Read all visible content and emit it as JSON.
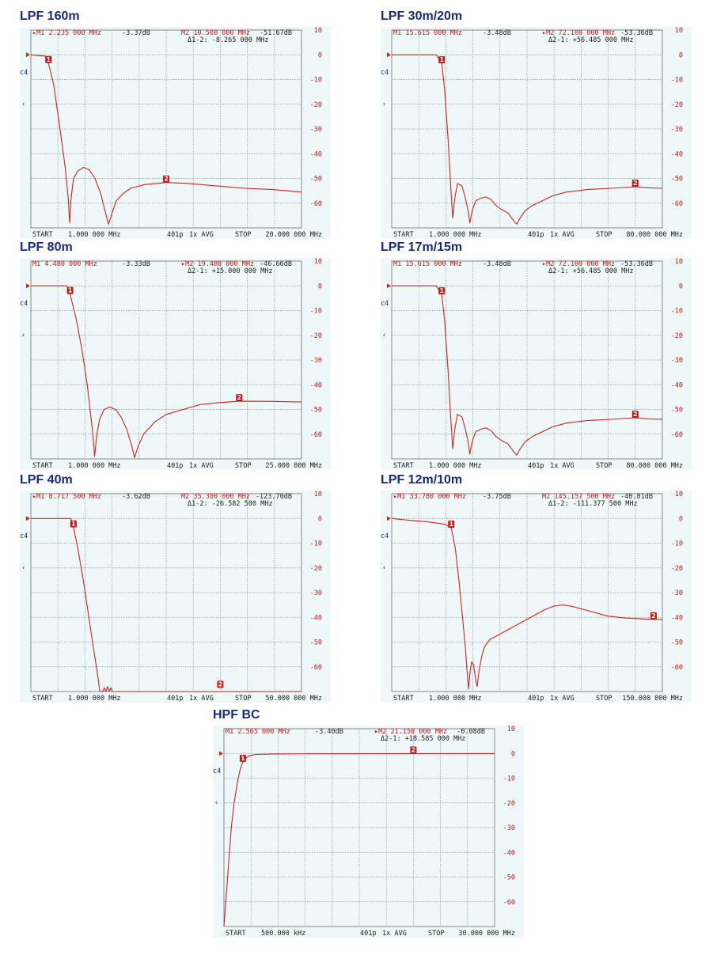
{
  "colors": {
    "title": "#1a2a7a",
    "trace": "#d42020",
    "text_red": "#c41818",
    "screen_bg": "#eef8f8",
    "grid": "#8e8e8e"
  },
  "chart_data": [
    {
      "type": "line",
      "title": "LPF 160m",
      "m1": {
        "label": "▸M1 2.235 000 MHz",
        "value": "-3.37dB"
      },
      "m2": {
        "label": "M2 10.500 000 MHz",
        "value": "-51.67dB"
      },
      "delta": "Δ1-2: -8.265 000 MHz",
      "yticks": [
        "10",
        "0",
        "-10",
        "-20",
        "-30",
        "-40",
        "-50",
        "-60"
      ],
      "ylim": [
        -70,
        10
      ],
      "channel": "c4",
      "channel_sym": "‹",
      "bottom": {
        "start": "START",
        "start_val": "1.000 000 MHz",
        "points": "401p",
        "avg": "1x AVG",
        "stop": "STOP",
        "stop_val": "20.000 000 MHz"
      },
      "xlim": [
        1.0,
        20.0
      ],
      "marker1": {
        "x": 2.235,
        "y": -3.37
      },
      "marker2": {
        "x": 10.5,
        "y": -51.67
      },
      "points": [
        [
          1.0,
          0
        ],
        [
          2.0,
          -0.5
        ],
        [
          2.235,
          -3.37
        ],
        [
          2.6,
          -12
        ],
        [
          3.0,
          -28
        ],
        [
          3.4,
          -45
        ],
        [
          3.62,
          -58
        ],
        [
          3.72,
          -68
        ],
        [
          3.82,
          -58
        ],
        [
          4.0,
          -50
        ],
        [
          4.3,
          -47
        ],
        [
          4.7,
          -45.5
        ],
        [
          5.1,
          -46.5
        ],
        [
          5.5,
          -50
        ],
        [
          5.9,
          -56
        ],
        [
          6.2,
          -63
        ],
        [
          6.45,
          -68.5
        ],
        [
          6.7,
          -64
        ],
        [
          7.0,
          -59
        ],
        [
          7.5,
          -56
        ],
        [
          8.0,
          -54
        ],
        [
          9.0,
          -52.5
        ],
        [
          10.5,
          -51.67
        ],
        [
          12.0,
          -52
        ],
        [
          14.0,
          -53
        ],
        [
          16.0,
          -54
        ],
        [
          18.0,
          -54.5
        ],
        [
          20.0,
          -55.5
        ]
      ]
    },
    {
      "type": "line",
      "title": "LPF 30m/20m",
      "m1": {
        "label": "M1 15.615 000 MHz",
        "value": "-3.48dB"
      },
      "m2": {
        "label": "▸M2 72.100 000 MHz",
        "value": "-53.36dB"
      },
      "delta": "Δ2-1: +56.485 000 MHz",
      "yticks": [
        "10",
        "0",
        "-10",
        "-20",
        "-30",
        "-40",
        "-50",
        "-60"
      ],
      "ylim": [
        -70,
        10
      ],
      "channel": "c4",
      "channel_sym": "‹",
      "bottom": {
        "start": "START",
        "start_val": "1.000 000 MHz",
        "points": "401p",
        "avg": "1x AVG",
        "stop": "STOP",
        "stop_val": "80.000 000 MHz"
      },
      "xlim": [
        1.0,
        80.0
      ],
      "marker1": {
        "x": 15.615,
        "y": -3.48
      },
      "marker2": {
        "x": 72.1,
        "y": -53.36
      },
      "points": [
        [
          1.0,
          0
        ],
        [
          14.0,
          0
        ],
        [
          15.615,
          -3.48
        ],
        [
          16.5,
          -15
        ],
        [
          17.5,
          -35
        ],
        [
          18.3,
          -55
        ],
        [
          18.8,
          -66
        ],
        [
          19.4,
          -58
        ],
        [
          20.2,
          -52
        ],
        [
          21.5,
          -53
        ],
        [
          22.5,
          -58
        ],
        [
          23.3,
          -63
        ],
        [
          23.8,
          -68
        ],
        [
          24.5,
          -63
        ],
        [
          25.5,
          -59
        ],
        [
          27.0,
          -58
        ],
        [
          28.5,
          -57.5
        ],
        [
          30.0,
          -58.5
        ],
        [
          31.5,
          -61
        ],
        [
          33.0,
          -62.5
        ],
        [
          35.0,
          -64
        ],
        [
          36.5,
          -67
        ],
        [
          37.5,
          -68.5
        ],
        [
          38.5,
          -66
        ],
        [
          40.0,
          -63
        ],
        [
          42.0,
          -61
        ],
        [
          45.0,
          -59
        ],
        [
          48.0,
          -57
        ],
        [
          52.0,
          -55.5
        ],
        [
          58.0,
          -54.5
        ],
        [
          65.0,
          -54
        ],
        [
          72.1,
          -53.36
        ],
        [
          76.0,
          -53.8
        ],
        [
          80.0,
          -54
        ]
      ]
    },
    {
      "type": "line",
      "title": "LPF 80m",
      "m1": {
        "label": "M1 4.480 000 MHz",
        "value": "-3.33dB"
      },
      "m2": {
        "label": "▸M2 19.480 000 MHz",
        "value": "-46.66dB"
      },
      "delta": "Δ2-1: +15.000 000 MHz",
      "yticks": [
        "10",
        "0",
        "-10",
        "-20",
        "-30",
        "-40",
        "-50",
        "-60"
      ],
      "ylim": [
        -70,
        10
      ],
      "channel": "c4",
      "channel_sym": "‹",
      "bottom": {
        "start": "START",
        "start_val": "1.000 000 MHz",
        "points": "401p",
        "avg": "1x AVG",
        "stop": "STOP",
        "stop_val": "25.000 000 MHz"
      },
      "xlim": [
        1.0,
        25.0
      ],
      "marker1": {
        "x": 4.48,
        "y": -3.33
      },
      "marker2": {
        "x": 19.48,
        "y": -46.66
      },
      "points": [
        [
          1.0,
          0
        ],
        [
          4.2,
          0
        ],
        [
          4.48,
          -3.33
        ],
        [
          5.0,
          -13
        ],
        [
          5.5,
          -25
        ],
        [
          6.0,
          -40
        ],
        [
          6.3,
          -52
        ],
        [
          6.5,
          -60
        ],
        [
          6.65,
          -69
        ],
        [
          6.85,
          -60
        ],
        [
          7.1,
          -54
        ],
        [
          7.5,
          -50
        ],
        [
          8.0,
          -49
        ],
        [
          8.5,
          -50
        ],
        [
          9.0,
          -53
        ],
        [
          9.5,
          -58
        ],
        [
          9.9,
          -64
        ],
        [
          10.2,
          -69.5
        ],
        [
          10.5,
          -65
        ],
        [
          11.0,
          -60
        ],
        [
          12.0,
          -55
        ],
        [
          13.0,
          -52
        ],
        [
          14.5,
          -50
        ],
        [
          16.0,
          -48
        ],
        [
          17.5,
          -47.3
        ],
        [
          19.48,
          -46.66
        ],
        [
          22.0,
          -46.7
        ],
        [
          25.0,
          -47
        ]
      ]
    },
    {
      "type": "line",
      "title": "LPF 17m/15m",
      "m1": {
        "label": "M1 15.615 000 MHz",
        "value": "-3.48dB"
      },
      "m2": {
        "label": "▸M2 72.100 000 MHz",
        "value": "-53.36dB"
      },
      "delta": "Δ2-1: +56.485 000 MHz",
      "yticks": [
        "10",
        "0",
        "-10",
        "-20",
        "-30",
        "-40",
        "-50",
        "-60"
      ],
      "ylim": [
        -70,
        10
      ],
      "channel": "c4",
      "channel_sym": "‹",
      "bottom": {
        "start": "START",
        "start_val": "1.000 000 MHz",
        "points": "401p",
        "avg": "1x AVG",
        "stop": "STOP",
        "stop_val": "80.000 000 MHz"
      },
      "xlim": [
        1.0,
        80.0
      ],
      "marker1": {
        "x": 15.615,
        "y": -3.48
      },
      "marker2": {
        "x": 72.1,
        "y": -53.36
      },
      "points": [
        [
          1.0,
          0
        ],
        [
          14.0,
          0
        ],
        [
          15.615,
          -3.48
        ],
        [
          16.5,
          -15
        ],
        [
          17.5,
          -35
        ],
        [
          18.3,
          -55
        ],
        [
          18.8,
          -66
        ],
        [
          19.4,
          -58
        ],
        [
          20.2,
          -52
        ],
        [
          21.5,
          -53
        ],
        [
          22.5,
          -58
        ],
        [
          23.3,
          -63
        ],
        [
          23.8,
          -68
        ],
        [
          24.5,
          -63
        ],
        [
          25.5,
          -59
        ],
        [
          27.0,
          -58
        ],
        [
          28.5,
          -57.5
        ],
        [
          30.0,
          -58.5
        ],
        [
          31.5,
          -61
        ],
        [
          33.0,
          -62.5
        ],
        [
          35.0,
          -64
        ],
        [
          36.5,
          -67
        ],
        [
          37.5,
          -68.5
        ],
        [
          38.5,
          -66
        ],
        [
          40.0,
          -63
        ],
        [
          42.0,
          -61
        ],
        [
          45.0,
          -59
        ],
        [
          48.0,
          -57
        ],
        [
          52.0,
          -55.5
        ],
        [
          58.0,
          -54.5
        ],
        [
          65.0,
          -54
        ],
        [
          72.1,
          -53.36
        ],
        [
          76.0,
          -53.8
        ],
        [
          80.0,
          -54
        ]
      ]
    },
    {
      "type": "line",
      "title": "LPF 40m",
      "m1": {
        "label": "▸M1 8.717 500 MHz",
        "value": "-3.62dB"
      },
      "m2": {
        "label": "M2 35.300 000 MHz",
        "value": "-123.70dB"
      },
      "delta": "Δ1-2: -26.582 500 MHz",
      "yticks": [
        "10",
        "0",
        "-10",
        "-20",
        "-30",
        "-40",
        "-50",
        "-60"
      ],
      "ylim": [
        -70,
        10
      ],
      "channel": "c4",
      "channel_sym": "‹",
      "bottom": {
        "start": "START",
        "start_val": "1.000 000 MHz",
        "points": "401p",
        "avg": "1x AVG",
        "stop": "STOP",
        "stop_val": "50.000 000 MHz"
      },
      "xlim": [
        1.0,
        50.0
      ],
      "marker1": {
        "x": 8.7175,
        "y": -3.62
      },
      "marker2": {
        "x": 35.3,
        "y": -70
      },
      "points": [
        [
          1.0,
          0
        ],
        [
          8.2,
          0
        ],
        [
          8.7175,
          -3.62
        ],
        [
          9.5,
          -12
        ],
        [
          10.5,
          -25
        ],
        [
          11.5,
          -40
        ],
        [
          12.3,
          -52
        ],
        [
          13.0,
          -62
        ],
        [
          13.5,
          -70
        ],
        [
          14.0,
          -70
        ],
        [
          14.3,
          -68.5
        ],
        [
          14.6,
          -70
        ],
        [
          14.9,
          -68
        ],
        [
          15.2,
          -70
        ],
        [
          15.5,
          -68.5
        ],
        [
          15.8,
          -70
        ],
        [
          50.0,
          -70
        ]
      ]
    },
    {
      "type": "line",
      "title": "LPF 12m/10m",
      "m1": {
        "label": "▸M1 33.780 000 MHz",
        "value": "-3.75dB"
      },
      "m2": {
        "label": "M2 145.157 500 MHz",
        "value": "-40.81dB"
      },
      "delta": "Δ1-2: -111.377 500 MHz",
      "yticks": [
        "10",
        "0",
        "-10",
        "-20",
        "-30",
        "-40",
        "-50",
        "-60"
      ],
      "ylim": [
        -70,
        10
      ],
      "channel": "c4",
      "channel_sym": "‹",
      "bottom": {
        "start": "START",
        "start_val": "1.000 000 MHz",
        "points": "401p",
        "avg": "1x AVG",
        "stop": "STOP",
        "stop_val": "150.000 000 MHz"
      },
      "xlim": [
        1.0,
        150.0
      ],
      "marker1": {
        "x": 33.78,
        "y": -3.75
      },
      "marker2": {
        "x": 145.1575,
        "y": -40.81
      },
      "points": [
        [
          1.0,
          0
        ],
        [
          10.0,
          -0.7
        ],
        [
          20.0,
          -1.3
        ],
        [
          30.0,
          -2.3
        ],
        [
          33.78,
          -3.75
        ],
        [
          36.0,
          -12
        ],
        [
          38.0,
          -25
        ],
        [
          40.0,
          -40
        ],
        [
          41.5,
          -52
        ],
        [
          42.5,
          -62
        ],
        [
          43.3,
          -69
        ],
        [
          44.0,
          -63
        ],
        [
          45.0,
          -58
        ],
        [
          46.0,
          -59
        ],
        [
          47.0,
          -64
        ],
        [
          48.0,
          -68
        ],
        [
          49.0,
          -62
        ],
        [
          50.5,
          -56
        ],
        [
          52.0,
          -52
        ],
        [
          55.0,
          -49
        ],
        [
          60.0,
          -47
        ],
        [
          65.0,
          -45
        ],
        [
          70.0,
          -43
        ],
        [
          75.0,
          -41
        ],
        [
          80.0,
          -39
        ],
        [
          85.0,
          -37
        ],
        [
          90.0,
          -35.5
        ],
        [
          95.0,
          -35
        ],
        [
          100.0,
          -35.5
        ],
        [
          110.0,
          -37.5
        ],
        [
          120.0,
          -39.5
        ],
        [
          130.0,
          -40.3
        ],
        [
          145.1575,
          -40.81
        ],
        [
          150.0,
          -40.9
        ]
      ]
    },
    {
      "type": "line",
      "title": "HPF BC",
      "m1": {
        "label": "M1 2.565 000 MHz",
        "value": "-3.40dB"
      },
      "m2": {
        "label": "▸M2 21.150 000 MHz",
        "value": "-0.08dB"
      },
      "delta": "Δ2-1: +18.585 000 MHz",
      "yticks": [
        "10",
        "0",
        "-10",
        "-20",
        "-30",
        "-40",
        "-50",
        "-60"
      ],
      "ylim": [
        -70,
        10
      ],
      "channel": "c4",
      "channel_sym": "‹",
      "bottom": {
        "start": "START",
        "start_val": "500.000 kHz",
        "points": "401p",
        "avg": "1x AVG",
        "stop": "STOP",
        "stop_val": "30.000 000 MHz"
      },
      "xlim": [
        0.5,
        30.0
      ],
      "marker1": {
        "x": 2.565,
        "y": -3.4
      },
      "marker2": {
        "x": 21.15,
        "y": -0.08
      },
      "points": [
        [
          0.5,
          -70
        ],
        [
          0.8,
          -55
        ],
        [
          1.0,
          -45
        ],
        [
          1.3,
          -30
        ],
        [
          1.6,
          -20
        ],
        [
          2.0,
          -11
        ],
        [
          2.3,
          -6
        ],
        [
          2.565,
          -3.4
        ],
        [
          2.9,
          -1.8
        ],
        [
          3.3,
          -0.8
        ],
        [
          4.0,
          -0.4
        ],
        [
          6.0,
          -0.2
        ],
        [
          10.0,
          -0.15
        ],
        [
          15.0,
          -0.1
        ],
        [
          21.15,
          -0.08
        ],
        [
          30.0,
          -0.05
        ]
      ]
    }
  ]
}
